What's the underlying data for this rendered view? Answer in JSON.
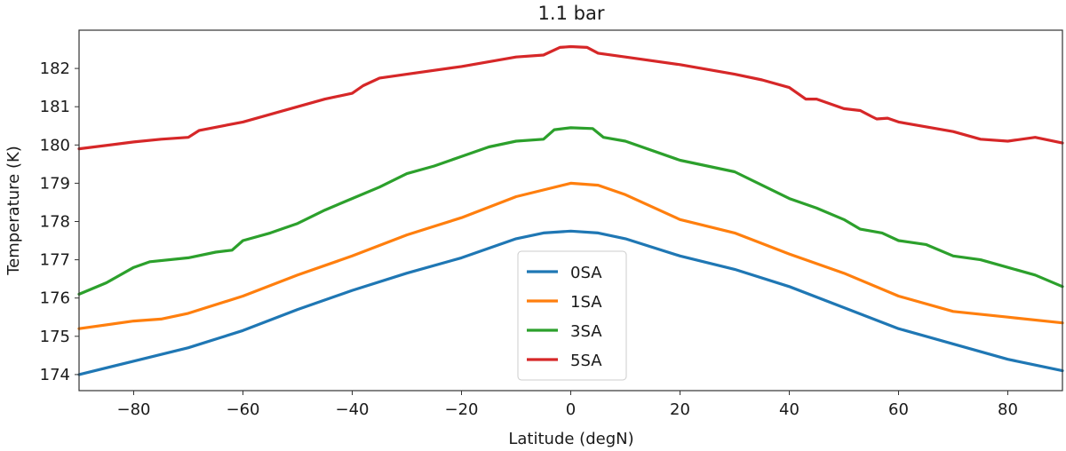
{
  "chart_data": {
    "type": "line",
    "title": "1.1 bar",
    "xlabel": "Latitude (degN)",
    "ylabel": "Temperature (K)",
    "xlim": [
      -90,
      90
    ],
    "ylim": [
      173.58,
      183.0
    ],
    "xticks": [
      -80,
      -60,
      -40,
      -20,
      0,
      20,
      40,
      60,
      80
    ],
    "xtick_labels": [
      "−80",
      "−60",
      "−40",
      "−20",
      "0",
      "20",
      "40",
      "60",
      "80"
    ],
    "yticks": [
      174,
      175,
      176,
      177,
      178,
      179,
      180,
      181,
      182
    ],
    "ytick_labels": [
      "174",
      "175",
      "176",
      "177",
      "178",
      "179",
      "180",
      "181",
      "182"
    ],
    "grid": false,
    "legend_position": "lower center",
    "series": [
      {
        "name": "0SA",
        "color": "#1f77b4",
        "x": [
          -90,
          -80,
          -70,
          -60,
          -50,
          -40,
          -30,
          -20,
          -10,
          -5,
          0,
          5,
          10,
          20,
          30,
          40,
          50,
          60,
          70,
          80,
          90
        ],
        "y": [
          174.0,
          174.35,
          174.7,
          175.15,
          175.7,
          176.2,
          176.65,
          177.05,
          177.55,
          177.7,
          177.75,
          177.7,
          177.55,
          177.1,
          176.75,
          176.3,
          175.75,
          175.2,
          174.8,
          174.4,
          174.1
        ]
      },
      {
        "name": "1SA",
        "color": "#ff7f0e",
        "x": [
          -90,
          -80,
          -75,
          -70,
          -60,
          -50,
          -40,
          -30,
          -20,
          -10,
          0,
          5,
          10,
          20,
          30,
          40,
          50,
          60,
          70,
          80,
          90
        ],
        "y": [
          175.2,
          175.4,
          175.45,
          175.6,
          176.05,
          176.6,
          177.1,
          177.65,
          178.1,
          178.65,
          179.0,
          178.95,
          178.7,
          178.05,
          177.7,
          177.15,
          176.65,
          176.05,
          175.65,
          175.5,
          175.35
        ]
      },
      {
        "name": "3SA",
        "color": "#2ca02c",
        "x": [
          -90,
          -85,
          -80,
          -77,
          -70,
          -65,
          -62,
          -60,
          -55,
          -50,
          -45,
          -40,
          -35,
          -30,
          -25,
          -20,
          -15,
          -10,
          -5,
          -3,
          0,
          4,
          6,
          10,
          20,
          30,
          35,
          40,
          45,
          50,
          53,
          57,
          60,
          65,
          70,
          75,
          80,
          85,
          90
        ],
        "y": [
          176.1,
          176.4,
          176.8,
          176.95,
          177.05,
          177.2,
          177.25,
          177.5,
          177.7,
          177.95,
          178.3,
          178.6,
          178.9,
          179.25,
          179.45,
          179.7,
          179.95,
          180.1,
          180.15,
          180.4,
          180.45,
          180.43,
          180.2,
          180.1,
          179.6,
          179.3,
          178.95,
          178.6,
          178.35,
          178.05,
          177.8,
          177.7,
          177.5,
          177.4,
          177.1,
          177.0,
          176.8,
          176.6,
          176.3
        ]
      },
      {
        "name": "5SA",
        "color": "#d62728",
        "x": [
          -90,
          -80,
          -75,
          -70,
          -68,
          -60,
          -50,
          -45,
          -40,
          -38,
          -35,
          -30,
          -20,
          -10,
          -5,
          -2,
          0,
          3,
          5,
          10,
          20,
          30,
          35,
          40,
          43,
          45,
          50,
          53,
          55,
          56,
          58,
          60,
          70,
          75,
          80,
          85,
          90
        ],
        "y": [
          179.9,
          180.08,
          180.15,
          180.2,
          180.38,
          180.6,
          181.0,
          181.2,
          181.35,
          181.55,
          181.75,
          181.85,
          182.05,
          182.3,
          182.35,
          182.55,
          182.57,
          182.55,
          182.4,
          182.3,
          182.1,
          181.85,
          181.7,
          181.5,
          181.2,
          181.2,
          180.95,
          180.9,
          180.75,
          180.68,
          180.7,
          180.6,
          180.35,
          180.15,
          180.1,
          180.2,
          180.05
        ]
      }
    ]
  }
}
